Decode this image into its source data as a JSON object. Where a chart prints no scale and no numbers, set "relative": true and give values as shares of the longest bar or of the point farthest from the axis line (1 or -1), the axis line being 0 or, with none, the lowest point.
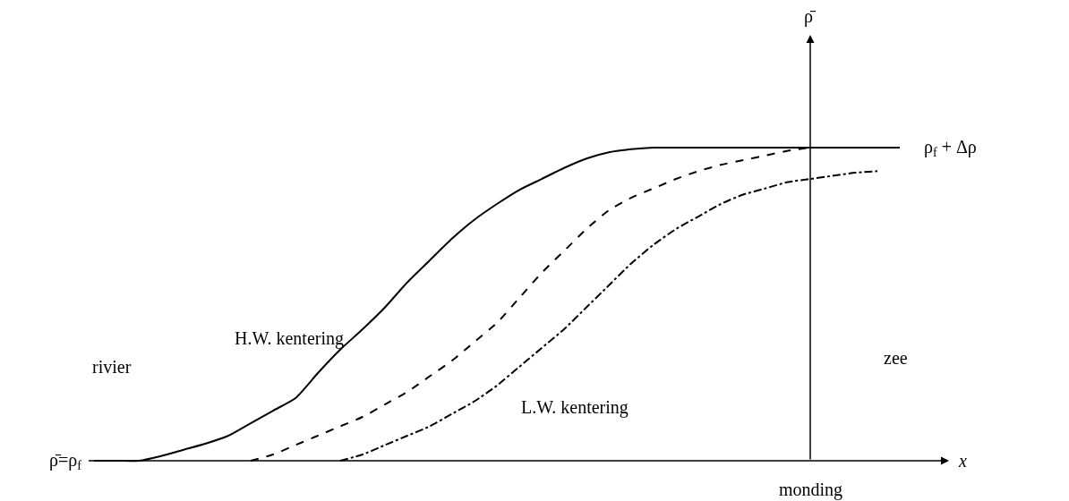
{
  "chart_data": {
    "type": "line",
    "relative": true,
    "xlabel": "x",
    "categories": [
      null,
      null,
      null,
      null,
      null,
      null,
      null,
      null,
      null,
      null,
      null,
      null,
      null,
      null,
      null,
      null,
      null,
      null,
      null,
      null,
      null,
      null,
      null,
      null,
      null,
      null,
      null,
      null,
      null,
      null,
      null,
      null,
      null,
      null,
      null,
      null,
      null
    ],
    "series": [
      {
        "name": "H.W. kentering",
        "color": "#000000",
        "line_style": "solid",
        "values": [
          0,
          0,
          0,
          0.015,
          0.035,
          0.055,
          0.08,
          0.12,
          0.16,
          0.2,
          0.28,
          0.355,
          0.42,
          0.49,
          0.57,
          0.64,
          0.71,
          0.77,
          0.82,
          0.865,
          0.9,
          0.935,
          0.965,
          0.985,
          0.995,
          1,
          1,
          1,
          1,
          1,
          1,
          1,
          1,
          1,
          1,
          1,
          1
        ]
      },
      {
        "color": "#000000",
        "line_style": "dashed",
        "values": [
          null,
          null,
          null,
          null,
          null,
          null,
          null,
          0,
          0.02,
          0.05,
          0.08,
          0.11,
          0.14,
          0.18,
          0.22,
          0.27,
          0.32,
          0.38,
          0.44,
          0.52,
          0.6,
          0.67,
          0.74,
          0.8,
          0.84,
          0.87,
          0.9,
          0.925,
          0.945,
          0.96,
          0.975,
          0.99,
          1,
          null,
          null,
          null,
          null
        ]
      },
      {
        "name": "L.W. kentering",
        "color": "#000000",
        "line_style": "dashdot",
        "values": [
          null,
          null,
          null,
          null,
          null,
          null,
          null,
          null,
          null,
          null,
          null,
          0,
          0.02,
          0.05,
          0.08,
          0.11,
          0.15,
          0.19,
          0.24,
          0.3,
          0.36,
          0.42,
          0.49,
          0.56,
          0.63,
          0.69,
          0.74,
          0.78,
          0.82,
          0.85,
          0.87,
          0.89,
          0.9,
          0.91,
          0.92,
          0.925,
          null
        ]
      }
    ],
    "annotations": [
      "rivier",
      "zee",
      "monding",
      "ρ̄=ρ$_{f}$",
      "ρ$_{f}$ + Δρ",
      "ρ̄"
    ],
    "legend": false
  }
}
